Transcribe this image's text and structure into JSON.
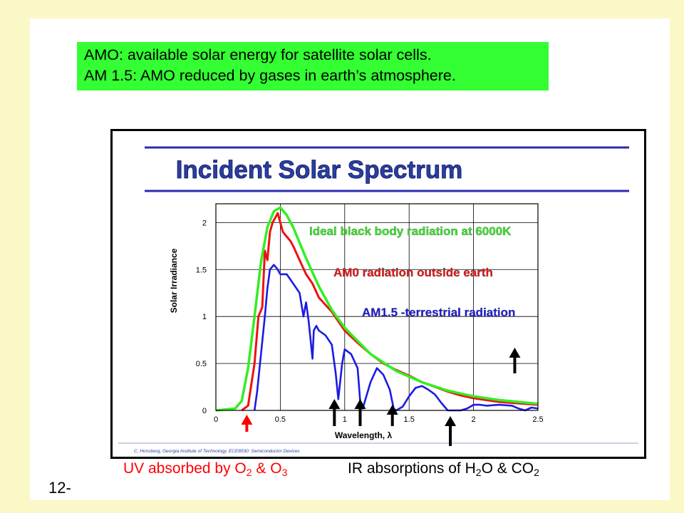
{
  "note": {
    "line1": "AMO: available solar energy for satellite solar cells.",
    "line2": "AM 1.5: AMO reduced by gases in earth’s atmosphere."
  },
  "figure": {
    "title": "Incident Solar Spectrum",
    "credit": "C. Honsberg, Georgia Institute of Technology, ECE8530: Semiconductor Devices"
  },
  "captions": {
    "uv_prefix": "UV absorbed by O",
    "uv_sub1": "2",
    "uv_mid": " & O",
    "uv_sub2": "3",
    "ir_prefix": "IR absorptions of H",
    "ir_sub1": "2",
    "ir_mid": "O & CO",
    "ir_sub2": "2"
  },
  "page_number": "12-",
  "colors": {
    "background": "#fbf8c8",
    "note_box": "#33ff33",
    "title_text": "#2b3fa0",
    "title_rule": "#2b2bb0",
    "blackbody": "#33ee22",
    "am0": "#ee1111",
    "am15": "#1a1ae6",
    "uv_text": "#ff0000"
  },
  "chart_data": {
    "type": "line",
    "xlabel": "Wavelength, λ",
    "ylabel": "Solar Irradiance",
    "xlim": [
      0,
      2.5
    ],
    "ylim": [
      0,
      2.2
    ],
    "xticks": [
      "0",
      "0.5",
      "1",
      "1.5",
      "2",
      "2.5"
    ],
    "yticks": [
      "0",
      "0.5",
      "1",
      "1.5",
      "2"
    ],
    "grid": true,
    "series": [
      {
        "name": "Ideal black body radiation at 6000K",
        "color": "#33ee22",
        "x": [
          0.0,
          0.15,
          0.2,
          0.25,
          0.3,
          0.35,
          0.4,
          0.45,
          0.5,
          0.55,
          0.6,
          0.7,
          0.8,
          0.9,
          1.0,
          1.2,
          1.4,
          1.6,
          1.8,
          2.0,
          2.2,
          2.5
        ],
        "y": [
          0.0,
          0.02,
          0.1,
          0.45,
          1.0,
          1.58,
          1.95,
          2.12,
          2.16,
          2.08,
          1.95,
          1.62,
          1.32,
          1.07,
          0.88,
          0.6,
          0.42,
          0.3,
          0.21,
          0.15,
          0.11,
          0.07
        ]
      },
      {
        "name": "AM0 radiation outside earth",
        "color": "#ee1111",
        "x": [
          0.2,
          0.25,
          0.3,
          0.33,
          0.36,
          0.38,
          0.4,
          0.42,
          0.44,
          0.46,
          0.48,
          0.5,
          0.52,
          0.55,
          0.58,
          0.6,
          0.65,
          0.7,
          0.75,
          0.8,
          0.9,
          1.0,
          1.1,
          1.2,
          1.3,
          1.4,
          1.5,
          1.6,
          1.7,
          1.8,
          1.9,
          2.0,
          2.1,
          2.2,
          2.3,
          2.4,
          2.5
        ],
        "y": [
          0.0,
          0.05,
          0.5,
          1.0,
          1.1,
          1.7,
          1.6,
          1.9,
          2.0,
          2.05,
          2.1,
          2.0,
          1.9,
          1.85,
          1.8,
          1.75,
          1.6,
          1.45,
          1.35,
          1.2,
          1.05,
          0.85,
          0.72,
          0.6,
          0.5,
          0.43,
          0.37,
          0.3,
          0.25,
          0.2,
          0.16,
          0.13,
          0.11,
          0.09,
          0.08,
          0.07,
          0.06
        ]
      },
      {
        "name": "AM1.5 -terrestrial radiation",
        "color": "#1a1ae6",
        "x": [
          0.3,
          0.32,
          0.35,
          0.38,
          0.4,
          0.42,
          0.45,
          0.48,
          0.5,
          0.55,
          0.6,
          0.65,
          0.68,
          0.7,
          0.72,
          0.75,
          0.76,
          0.78,
          0.8,
          0.85,
          0.9,
          0.93,
          0.95,
          0.98,
          1.0,
          1.05,
          1.1,
          1.12,
          1.14,
          1.2,
          1.25,
          1.3,
          1.35,
          1.38,
          1.4,
          1.45,
          1.5,
          1.55,
          1.6,
          1.65,
          1.7,
          1.75,
          1.8,
          1.85,
          1.9,
          1.95,
          2.0,
          2.05,
          2.1,
          2.2,
          2.3,
          2.35,
          2.4,
          2.45,
          2.5
        ],
        "y": [
          0.0,
          0.2,
          0.6,
          1.0,
          1.3,
          1.5,
          1.55,
          1.5,
          1.45,
          1.45,
          1.35,
          1.25,
          1.0,
          1.15,
          0.95,
          0.55,
          0.85,
          0.9,
          0.85,
          0.8,
          0.7,
          0.4,
          0.12,
          0.5,
          0.65,
          0.6,
          0.45,
          0.1,
          0.02,
          0.3,
          0.45,
          0.38,
          0.22,
          0.02,
          0.0,
          0.04,
          0.15,
          0.24,
          0.26,
          0.22,
          0.17,
          0.08,
          0.0,
          0.0,
          0.0,
          0.02,
          0.06,
          0.06,
          0.05,
          0.06,
          0.05,
          0.02,
          0.0,
          0.03,
          0.02
        ]
      }
    ],
    "arrows": [
      {
        "x": 0.24,
        "color": "#ff0000",
        "direction": "up"
      },
      {
        "x": 0.92,
        "color": "#000000",
        "direction": "up"
      },
      {
        "x": 1.12,
        "color": "#000000",
        "direction": "up"
      },
      {
        "x": 1.37,
        "color": "#000000",
        "direction": "up"
      },
      {
        "x": 1.82,
        "color": "#000000",
        "direction": "up"
      },
      {
        "x": 2.32,
        "color": "#000000",
        "direction": "up"
      }
    ]
  }
}
